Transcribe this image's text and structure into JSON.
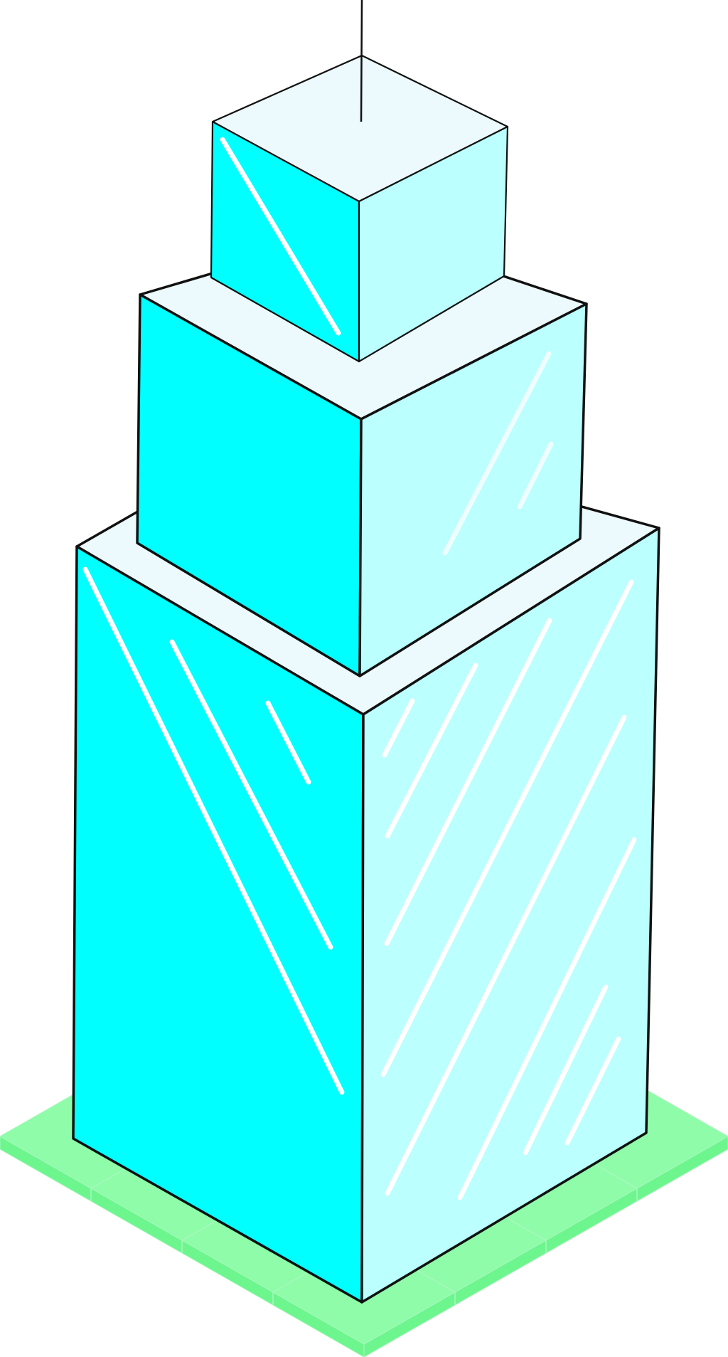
{
  "colors": {
    "background": "#ffffff",
    "outline": "#111111",
    "front_face": "#00ffff",
    "side_face": "#bbffff",
    "roof": "#edfafd",
    "glare": "#ffffff",
    "ground_top": "#8efca8",
    "ground_edge": "#6df58e",
    "ground_lines": "#a8f7bd"
  },
  "icons": {
    "building": "skyscraper-icon",
    "ground": "grass-tile-icon"
  }
}
